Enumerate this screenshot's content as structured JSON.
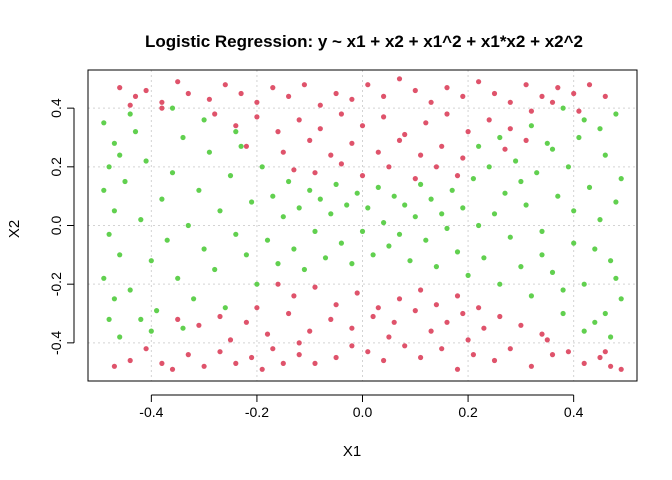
{
  "chart_data": {
    "type": "scatter",
    "title": "Logistic Regression: y ~ x1 + x2 + x1^2 + x1*x2 + x2^2",
    "xlabel": "X1",
    "ylabel": "X2",
    "xlim": [
      -0.52,
      0.52
    ],
    "ylim": [
      -0.53,
      0.53
    ],
    "xticks": [
      -0.4,
      -0.2,
      0.0,
      0.2,
      0.4
    ],
    "xtick_labels": [
      "-0.4",
      "-0.2",
      "0.0",
      "0.2",
      "0.4"
    ],
    "yticks": [
      -0.4,
      -0.2,
      0.0,
      0.2,
      0.4
    ],
    "ytick_labels": [
      "-0.4",
      "-0.2",
      "0.0",
      "0.2",
      "0.4"
    ],
    "grid": true,
    "legend": "none",
    "series": [
      {
        "color": "#DF536B",
        "points": [
          [
            -0.47,
            -0.48
          ],
          [
            -0.44,
            -0.46
          ],
          [
            -0.41,
            -0.42
          ],
          [
            -0.38,
            -0.47
          ],
          [
            -0.36,
            -0.49
          ],
          [
            -0.33,
            -0.44
          ],
          [
            -0.3,
            -0.48
          ],
          [
            -0.27,
            -0.43
          ],
          [
            -0.24,
            -0.47
          ],
          [
            -0.21,
            -0.45
          ],
          [
            -0.19,
            -0.49
          ],
          [
            -0.17,
            -0.42
          ],
          [
            -0.15,
            -0.47
          ],
          [
            -0.12,
            -0.44
          ],
          [
            -0.09,
            -0.47
          ],
          [
            -0.05,
            -0.45
          ],
          [
            -0.02,
            -0.41
          ],
          [
            0.01,
            -0.43
          ],
          [
            0.04,
            -0.46
          ],
          [
            0.08,
            -0.41
          ],
          [
            0.11,
            -0.45
          ],
          [
            0.15,
            -0.42
          ],
          [
            0.18,
            -0.49
          ],
          [
            0.21,
            -0.44
          ],
          [
            0.25,
            -0.46
          ],
          [
            0.28,
            -0.42
          ],
          [
            0.32,
            -0.48
          ],
          [
            0.36,
            -0.44
          ],
          [
            0.39,
            -0.43
          ],
          [
            0.42,
            -0.47
          ],
          [
            0.45,
            -0.45
          ],
          [
            0.47,
            -0.48
          ],
          [
            0.49,
            -0.49
          ],
          [
            0.46,
            -0.43
          ],
          [
            -0.35,
            -0.32
          ],
          [
            -0.31,
            -0.34
          ],
          [
            -0.27,
            -0.31
          ],
          [
            -0.22,
            -0.33
          ],
          [
            -0.18,
            -0.37
          ],
          [
            -0.14,
            -0.3
          ],
          [
            -0.1,
            -0.36
          ],
          [
            -0.06,
            -0.32
          ],
          [
            -0.02,
            -0.35
          ],
          [
            0.02,
            -0.31
          ],
          [
            0.06,
            -0.33
          ],
          [
            0.1,
            -0.29
          ],
          [
            0.13,
            -0.36
          ],
          [
            0.16,
            -0.33
          ],
          [
            0.19,
            -0.3
          ],
          [
            0.23,
            -0.35
          ],
          [
            0.26,
            -0.31
          ],
          [
            0.3,
            -0.34
          ],
          [
            0.34,
            -0.37
          ],
          [
            -0.25,
            -0.39
          ],
          [
            -0.12,
            -0.4
          ],
          [
            0.05,
            -0.38
          ],
          [
            0.2,
            -0.39
          ],
          [
            0.35,
            -0.39
          ],
          [
            -0.2,
            -0.28
          ],
          [
            -0.13,
            -0.24
          ],
          [
            -0.09,
            -0.21
          ],
          [
            -0.05,
            -0.27
          ],
          [
            -0.01,
            -0.23
          ],
          [
            0.03,
            -0.28
          ],
          [
            0.07,
            -0.25
          ],
          [
            0.11,
            -0.22
          ],
          [
            0.14,
            -0.27
          ],
          [
            0.18,
            -0.24
          ],
          [
            -0.16,
            -0.2
          ],
          [
            0.22,
            -0.28
          ],
          [
            -0.46,
            0.47
          ],
          [
            -0.43,
            0.44
          ],
          [
            -0.41,
            0.46
          ],
          [
            -0.38,
            0.42
          ],
          [
            -0.35,
            0.49
          ],
          [
            -0.33,
            0.45
          ],
          [
            -0.29,
            0.43
          ],
          [
            -0.26,
            0.48
          ],
          [
            -0.23,
            0.45
          ],
          [
            -0.2,
            0.42
          ],
          [
            -0.17,
            0.47
          ],
          [
            -0.14,
            0.44
          ],
          [
            -0.11,
            0.48
          ],
          [
            -0.08,
            0.41
          ],
          [
            -0.05,
            0.45
          ],
          [
            -0.02,
            0.43
          ],
          [
            0.01,
            0.48
          ],
          [
            0.04,
            0.44
          ],
          [
            0.07,
            0.5
          ],
          [
            0.1,
            0.46
          ],
          [
            0.13,
            0.42
          ],
          [
            0.16,
            0.47
          ],
          [
            0.19,
            0.44
          ],
          [
            0.22,
            0.49
          ],
          [
            0.25,
            0.45
          ],
          [
            0.28,
            0.42
          ],
          [
            0.31,
            0.48
          ],
          [
            0.34,
            0.44
          ],
          [
            0.37,
            0.47
          ],
          [
            0.4,
            0.45
          ],
          [
            0.43,
            0.48
          ],
          [
            0.46,
            0.44
          ],
          [
            -0.28,
            0.38
          ],
          [
            -0.24,
            0.34
          ],
          [
            -0.2,
            0.37
          ],
          [
            -0.16,
            0.32
          ],
          [
            -0.12,
            0.36
          ],
          [
            -0.08,
            0.33
          ],
          [
            -0.04,
            0.38
          ],
          [
            0.0,
            0.34
          ],
          [
            0.04,
            0.37
          ],
          [
            0.08,
            0.31
          ],
          [
            0.12,
            0.35
          ],
          [
            0.16,
            0.38
          ],
          [
            0.2,
            0.32
          ],
          [
            0.24,
            0.36
          ],
          [
            0.28,
            0.33
          ],
          [
            0.32,
            0.39
          ],
          [
            -0.22,
            0.27
          ],
          [
            -0.15,
            0.25
          ],
          [
            -0.1,
            0.29
          ],
          [
            -0.06,
            0.24
          ],
          [
            -0.02,
            0.28
          ],
          [
            0.03,
            0.25
          ],
          [
            0.07,
            0.29
          ],
          [
            0.11,
            0.24
          ],
          [
            0.15,
            0.27
          ],
          [
            0.19,
            0.23
          ],
          [
            0.27,
            0.26
          ],
          [
            0.31,
            0.29
          ],
          [
            -0.09,
            0.18
          ],
          [
            -0.04,
            0.21
          ],
          [
            0.0,
            0.17
          ],
          [
            0.05,
            0.2
          ],
          [
            0.1,
            0.16
          ],
          [
            -0.13,
            0.19
          ],
          [
            0.14,
            0.2
          ],
          [
            0.18,
            0.17
          ],
          [
            0.36,
            0.42
          ],
          [
            -0.38,
            0.4
          ],
          [
            -0.44,
            0.41
          ],
          [
            0.41,
            0.39
          ]
        ]
      },
      {
        "color": "#61D04F",
        "points": [
          [
            -0.49,
            0.35
          ],
          [
            -0.47,
            0.28
          ],
          [
            -0.48,
            0.2
          ],
          [
            -0.49,
            0.12
          ],
          [
            -0.47,
            0.05
          ],
          [
            -0.48,
            -0.03
          ],
          [
            -0.46,
            -0.1
          ],
          [
            -0.49,
            -0.18
          ],
          [
            -0.47,
            -0.25
          ],
          [
            -0.48,
            -0.32
          ],
          [
            -0.46,
            -0.38
          ],
          [
            -0.45,
            0.15
          ],
          [
            -0.44,
            -0.22
          ],
          [
            -0.43,
            0.32
          ],
          [
            -0.42,
            0.02
          ],
          [
            -0.4,
            -0.12
          ],
          [
            -0.41,
            0.22
          ],
          [
            -0.38,
            0.09
          ],
          [
            -0.37,
            -0.05
          ],
          [
            -0.39,
            -0.29
          ],
          [
            -0.36,
            0.18
          ],
          [
            -0.35,
            -0.18
          ],
          [
            -0.34,
            0.3
          ],
          [
            -0.33,
            0.0
          ],
          [
            -0.32,
            -0.25
          ],
          [
            -0.31,
            0.12
          ],
          [
            -0.3,
            -0.08
          ],
          [
            -0.29,
            0.25
          ],
          [
            -0.28,
            -0.15
          ],
          [
            -0.27,
            0.05
          ],
          [
            -0.26,
            -0.28
          ],
          [
            -0.25,
            0.17
          ],
          [
            -0.24,
            -0.03
          ],
          [
            -0.23,
            0.27
          ],
          [
            -0.22,
            -0.1
          ],
          [
            -0.21,
            0.08
          ],
          [
            -0.2,
            -0.2
          ],
          [
            -0.19,
            0.2
          ],
          [
            -0.18,
            -0.05
          ],
          [
            -0.17,
            0.1
          ],
          [
            -0.16,
            -0.13
          ],
          [
            -0.15,
            0.03
          ],
          [
            -0.14,
            0.15
          ],
          [
            -0.13,
            -0.08
          ],
          [
            -0.12,
            0.06
          ],
          [
            -0.11,
            -0.15
          ],
          [
            -0.1,
            0.12
          ],
          [
            -0.09,
            -0.02
          ],
          [
            -0.08,
            0.09
          ],
          [
            -0.07,
            -0.11
          ],
          [
            -0.06,
            0.04
          ],
          [
            -0.05,
            0.14
          ],
          [
            -0.04,
            -0.06
          ],
          [
            -0.03,
            0.07
          ],
          [
            -0.02,
            -0.13
          ],
          [
            -0.01,
            0.11
          ],
          [
            0.0,
            -0.02
          ],
          [
            0.01,
            0.06
          ],
          [
            0.02,
            -0.1
          ],
          [
            0.03,
            0.13
          ],
          [
            0.04,
            0.01
          ],
          [
            0.05,
            -0.07
          ],
          [
            0.06,
            0.1
          ],
          [
            0.07,
            -0.03
          ],
          [
            0.08,
            0.07
          ],
          [
            0.09,
            -0.12
          ],
          [
            0.1,
            0.03
          ],
          [
            0.11,
            0.14
          ],
          [
            0.12,
            -0.05
          ],
          [
            0.13,
            0.09
          ],
          [
            0.14,
            -0.14
          ],
          [
            0.15,
            0.04
          ],
          [
            0.16,
            -0.01
          ],
          [
            0.17,
            0.12
          ],
          [
            0.18,
            -0.09
          ],
          [
            0.19,
            0.06
          ],
          [
            0.2,
            -0.17
          ],
          [
            0.21,
            0.16
          ],
          [
            0.22,
            0.0
          ],
          [
            0.23,
            -0.11
          ],
          [
            0.24,
            0.2
          ],
          [
            0.25,
            0.04
          ],
          [
            0.26,
            -0.2
          ],
          [
            0.27,
            0.11
          ],
          [
            0.28,
            -0.04
          ],
          [
            0.29,
            0.22
          ],
          [
            0.3,
            -0.14
          ],
          [
            0.31,
            0.07
          ],
          [
            0.32,
            -0.24
          ],
          [
            0.33,
            0.18
          ],
          [
            0.34,
            -0.02
          ],
          [
            0.35,
            0.28
          ],
          [
            0.36,
            -0.16
          ],
          [
            0.37,
            0.1
          ],
          [
            0.38,
            -0.3
          ],
          [
            0.39,
            0.2
          ],
          [
            0.4,
            -0.06
          ],
          [
            0.41,
            0.3
          ],
          [
            0.42,
            -0.2
          ],
          [
            0.43,
            0.13
          ],
          [
            0.44,
            -0.33
          ],
          [
            0.45,
            0.02
          ],
          [
            0.46,
            0.24
          ],
          [
            0.47,
            -0.12
          ],
          [
            0.48,
            0.38
          ],
          [
            0.49,
            -0.25
          ],
          [
            0.48,
            0.08
          ],
          [
            0.47,
            -0.38
          ],
          [
            0.49,
            0.16
          ],
          [
            0.46,
            -0.3
          ],
          [
            0.48,
            -0.18
          ],
          [
            0.45,
            0.33
          ],
          [
            0.44,
            -0.08
          ],
          [
            0.42,
            0.36
          ],
          [
            0.4,
            0.05
          ],
          [
            0.38,
            -0.22
          ],
          [
            0.36,
            0.26
          ],
          [
            0.34,
            -0.1
          ],
          [
            0.32,
            0.34
          ],
          [
            0.3,
            0.15
          ],
          [
            -0.44,
            0.38
          ],
          [
            -0.46,
            0.24
          ],
          [
            -0.42,
            -0.32
          ],
          [
            -0.34,
            -0.35
          ],
          [
            -0.3,
            0.36
          ],
          [
            -0.24,
            0.32
          ],
          [
            0.26,
            0.3
          ],
          [
            0.22,
            0.27
          ],
          [
            -0.36,
            0.4
          ],
          [
            0.38,
            0.4
          ],
          [
            -0.4,
            -0.36
          ],
          [
            0.42,
            -0.36
          ]
        ]
      }
    ]
  }
}
